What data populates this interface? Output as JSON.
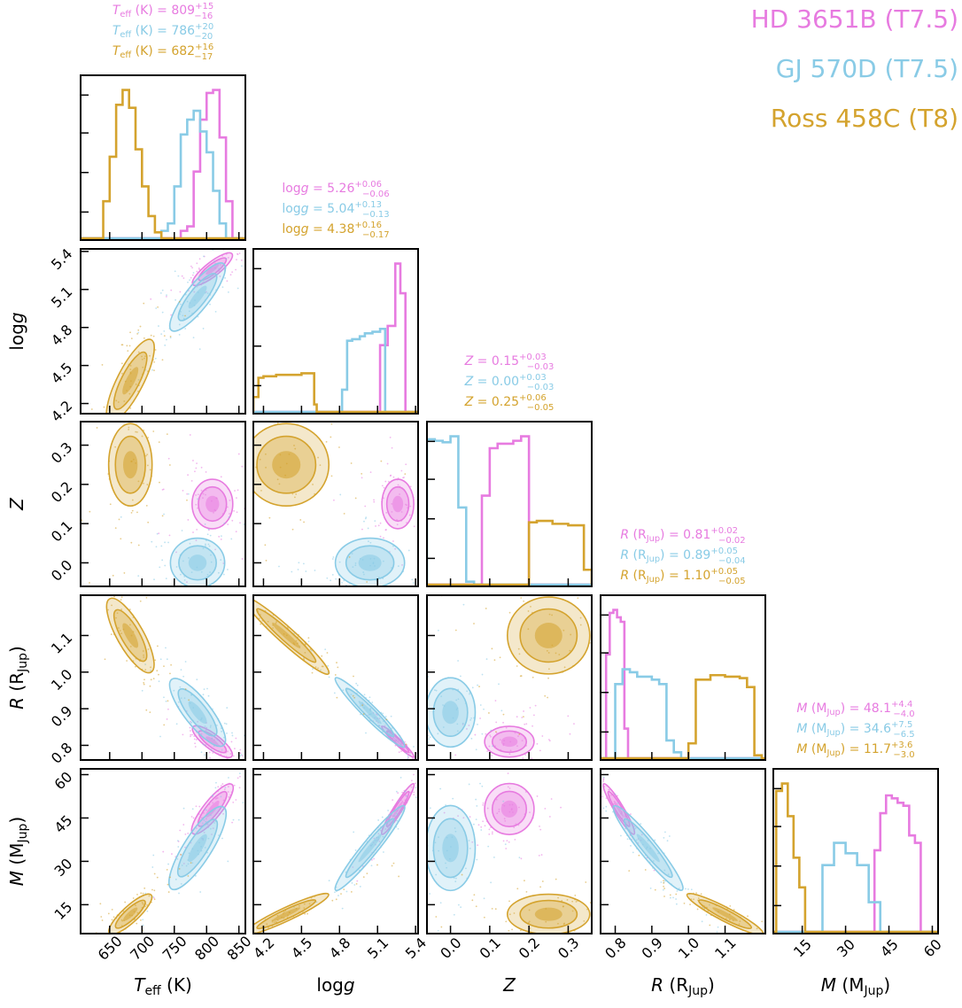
{
  "colors": {
    "hd": "#e77be0",
    "gj": "#89cbe6",
    "ross": "#d4a32e"
  },
  "legend": [
    {
      "label": "HD 3651B (T7.5)",
      "color": "#e77be0"
    },
    {
      "label": "GJ 570D (T7.5)",
      "color": "#89cbe6"
    },
    {
      "label": "Ross 458C (T8)",
      "color": "#d4a32e"
    }
  ],
  "chart_data": {
    "type": "corner",
    "grid": false,
    "legend_placement": "top-right",
    "params": [
      {
        "key": "teff",
        "axis_label": "T_eff (K)",
        "range": [
          605,
          860
        ],
        "ticks": [
          650,
          700,
          750,
          800,
          850
        ],
        "summaries": [
          {
            "tex": "T_eff (K) = 809",
            "up": "+15",
            "down": "−16"
          },
          {
            "tex": "T_eff (K) = 786",
            "up": "+20",
            "down": "−20"
          },
          {
            "tex": "T_eff (K) = 682",
            "up": "+16",
            "down": "−17"
          }
        ]
      },
      {
        "key": "logg",
        "axis_label": "log g",
        "range": [
          4.12,
          5.42
        ],
        "ticks": [
          4.2,
          4.5,
          4.8,
          5.1,
          5.4
        ],
        "summaries": [
          {
            "tex": "log g = 5.26",
            "up": "+0.06",
            "down": "−0.06"
          },
          {
            "tex": "log g = 5.04",
            "up": "+0.13",
            "down": "−0.13"
          },
          {
            "tex": "log g = 4.38",
            "up": "+0.16",
            "down": "−0.17"
          }
        ]
      },
      {
        "key": "Z",
        "axis_label": "Z",
        "range": [
          -0.06,
          0.36
        ],
        "ticks": [
          0.0,
          0.1,
          0.2,
          0.3
        ],
        "summaries": [
          {
            "tex": "Z = 0.15",
            "up": "+0.03",
            "down": "−0.03"
          },
          {
            "tex": "Z = 0.00",
            "up": "+0.03",
            "down": "−0.03"
          },
          {
            "tex": "Z = 0.25",
            "up": "+0.06",
            "down": "−0.05"
          }
        ]
      },
      {
        "key": "R",
        "axis_label": "R (R_Jup)",
        "range": [
          0.76,
          1.21
        ],
        "ticks": [
          0.8,
          0.9,
          1.0,
          1.1
        ],
        "summaries": [
          {
            "tex": "R (R_Jup) = 0.81",
            "up": "+0.02",
            "down": "−0.02"
          },
          {
            "tex": "R (R_Jup) = 0.89",
            "up": "+0.05",
            "down": "−0.04"
          },
          {
            "tex": "R (R_Jup) = 1.10",
            "up": "+0.05",
            "down": "−0.05"
          }
        ]
      },
      {
        "key": "M",
        "axis_label": "M (M_Jup)",
        "range": [
          5,
          62
        ],
        "ticks": [
          15,
          30,
          45,
          60
        ],
        "summaries": [
          {
            "tex": "M (M_Jup) = 48.1",
            "up": "+4.4",
            "down": "−4.0"
          },
          {
            "tex": "M (M_Jup) = 34.6",
            "up": "+7.5",
            "down": "−6.5"
          },
          {
            "tex": "M (M_Jup) = 11.7",
            "up": "+3.6",
            "down": "−3.0"
          }
        ]
      }
    ],
    "y_axis_labels": [
      "log g",
      "Z",
      "R (R_Jup)",
      "M (M_Jup)"
    ],
    "series": [
      {
        "name": "HD 3651B (T7.5)",
        "median": {
          "teff": 809,
          "logg": 5.26,
          "Z": 0.15,
          "R": 0.81,
          "M": 48.1
        },
        "sigma": {
          "teff": 15,
          "logg": 0.06,
          "Z": 0.03,
          "R": 0.02,
          "M": 4.2
        },
        "hists": {
          "teff": {
            "edges": [
              760,
              770,
              780,
              790,
              800,
              810,
              820,
              830,
              840
            ],
            "heights": [
              0.05,
              0.08,
              0.45,
              0.8,
              0.98,
              1.0,
              0.68,
              0.25
            ]
          },
          "logg": {
            "edges": [
              5.12,
              5.18,
              5.24,
              5.28,
              5.32,
              5.36
            ],
            "heights": [
              0.45,
              0.58,
              1.0,
              0.8,
              0.0
            ]
          },
          "Z": {
            "edges": [
              0.08,
              0.1,
              0.12,
              0.14,
              0.16,
              0.18,
              0.2
            ],
            "heights": [
              0.6,
              0.92,
              0.95,
              0.95,
              0.97,
              1.0
            ]
          },
          "R": {
            "edges": [
              0.775,
              0.785,
              0.795,
              0.805,
              0.815,
              0.825,
              0.835
            ],
            "heights": [
              0.7,
              0.98,
              1.0,
              0.95,
              0.92,
              0.2
            ]
          },
          "M": {
            "edges": [
              40,
              42,
              44,
              46,
              48,
              50,
              52,
              54,
              56
            ],
            "heights": [
              0.55,
              0.8,
              0.92,
              0.9,
              0.87,
              0.85,
              0.65,
              0.6
            ]
          }
        }
      },
      {
        "name": "GJ 570D (T7.5)",
        "median": {
          "teff": 786,
          "logg": 5.04,
          "Z": 0.0,
          "R": 0.89,
          "M": 34.6
        },
        "sigma": {
          "teff": 20,
          "logg": 0.13,
          "Z": 0.03,
          "R": 0.045,
          "M": 7.0
        },
        "hists": {
          "teff": {
            "edges": [
              730,
              740,
              750,
              760,
              770,
              780,
              790,
              800,
              810,
              820,
              830
            ],
            "heights": [
              0.05,
              0.1,
              0.35,
              0.7,
              0.8,
              0.86,
              0.72,
              0.58,
              0.32,
              0.1
            ]
          },
          "logg": {
            "edges": [
              4.82,
              4.86,
              4.9,
              4.96,
              5.0,
              5.06,
              5.12,
              5.16
            ],
            "heights": [
              0.15,
              0.48,
              0.49,
              0.51,
              0.53,
              0.54,
              0.56
            ]
          },
          "Z": {
            "edges": [
              -0.06,
              -0.04,
              -0.02,
              0.0,
              0.02,
              0.04,
              0.06
            ],
            "heights": [
              0.98,
              0.97,
              0.96,
              1.0,
              0.52,
              0.02
            ]
          },
          "R": {
            "edges": [
              0.8,
              0.82,
              0.84,
              0.86,
              0.88,
              0.9,
              0.92,
              0.94,
              0.96,
              0.98
            ],
            "heights": [
              0.5,
              0.6,
              0.58,
              0.55,
              0.55,
              0.53,
              0.5,
              0.12,
              0.04
            ]
          },
          "M": {
            "edges": [
              22,
              26,
              30,
              34,
              38,
              42
            ],
            "heights": [
              0.45,
              0.6,
              0.53,
              0.45,
              0.2
            ]
          }
        }
      },
      {
        "name": "Ross 458C (T8)",
        "median": {
          "teff": 682,
          "logg": 4.38,
          "Z": 0.25,
          "R": 1.1,
          "M": 11.7
        },
        "sigma": {
          "teff": 16,
          "logg": 0.16,
          "Z": 0.05,
          "R": 0.05,
          "M": 3.3
        },
        "hists": {
          "teff": {
            "edges": [
              640,
              650,
              660,
              670,
              680,
              690,
              700,
              710,
              720,
              730
            ],
            "heights": [
              0.25,
              0.55,
              0.9,
              1.0,
              0.88,
              0.6,
              0.35,
              0.15,
              0.04
            ]
          },
          "logg": {
            "edges": [
              4.12,
              4.16,
              4.2,
              4.3,
              4.4,
              4.5,
              4.6,
              4.62
            ],
            "heights": [
              0.1,
              0.23,
              0.24,
              0.25,
              0.25,
              0.26,
              0.05
            ]
          },
          "Z": {
            "edges": [
              0.2,
              0.22,
              0.26,
              0.3,
              0.34,
              0.36
            ],
            "heights": [
              0.42,
              0.43,
              0.41,
              0.4,
              0.1
            ]
          },
          "R": {
            "edges": [
              1.0,
              1.02,
              1.06,
              1.1,
              1.14,
              1.16,
              1.18,
              1.2
            ],
            "heights": [
              0.1,
              0.53,
              0.56,
              0.55,
              0.54,
              0.48,
              0.02
            ]
          },
          "M": {
            "edges": [
              6,
              8,
              10,
              12,
              14,
              16,
              18
            ],
            "heights": [
              0.95,
              1.0,
              0.78,
              0.5,
              0.3,
              0.0
            ]
          }
        }
      }
    ],
    "correlations": {
      "teff|logg": 0.85,
      "teff|Z": 0.0,
      "teff|R": -0.82,
      "teff|M": 0.85,
      "logg|Z": 0.0,
      "logg|R": -0.98,
      "logg|M": 0.97,
      "Z|R": 0.0,
      "Z|M": 0.0,
      "R|M": -0.95
    }
  }
}
